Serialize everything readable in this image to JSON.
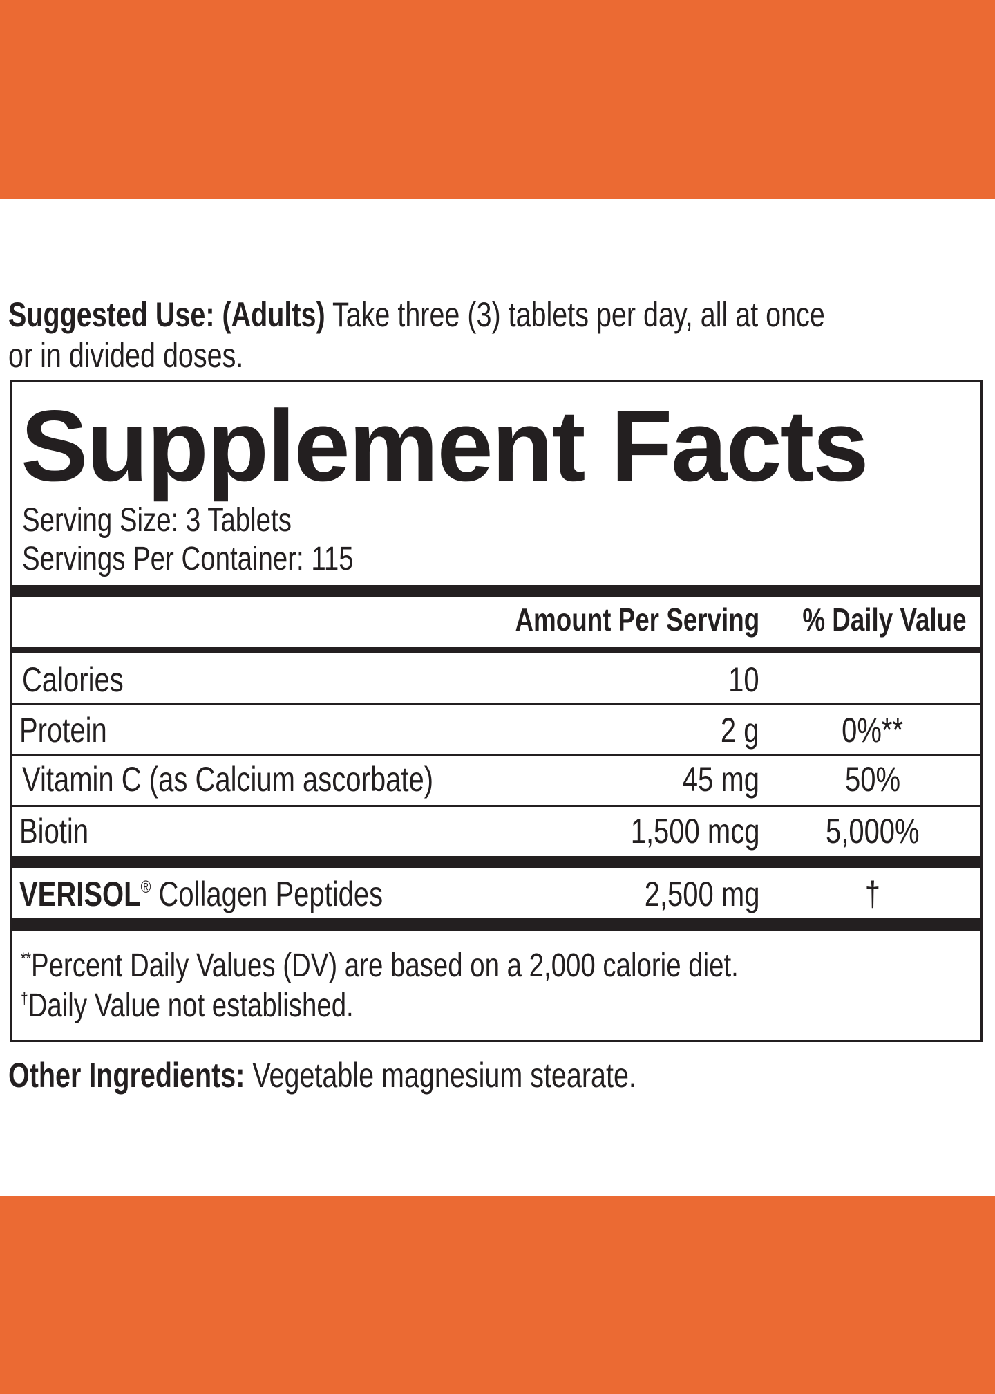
{
  "colors": {
    "band": "#eb6a33",
    "text": "#231f20"
  },
  "suggested_use": {
    "label": "Suggested Use: (Adults)",
    "line1": "Take three (3) tablets per day, all at once",
    "line2": "or in divided doses."
  },
  "facts": {
    "title": "Supplement Facts",
    "serving_size": "Serving Size: 3 Tablets",
    "servings_per_container": "Servings Per Container: 115",
    "header": {
      "amount": "Amount Per Serving",
      "dv": "% Daily Value"
    },
    "rows": [
      {
        "name": "Calories",
        "amount": "10",
        "dv": ""
      },
      {
        "name": "Protein",
        "amount": "2 g",
        "dv": "0%**"
      },
      {
        "name": "Vitamin C (as Calcium ascorbate)",
        "amount": "45 mg",
        "dv": "50%"
      },
      {
        "name": "Biotin",
        "amount": "1,500 mcg",
        "dv": "5,000%"
      }
    ],
    "collagen": {
      "brand": "VERISOL",
      "reg": "®",
      "name": "Collagen Peptides",
      "amount": "2,500 mg",
      "dv": "†"
    },
    "footnotes": [
      {
        "mark": "**",
        "text": "Percent Daily Values (DV) are based on a 2,000 calorie diet."
      },
      {
        "mark": "†",
        "text": "Daily Value not established."
      }
    ]
  },
  "other_ingredients": {
    "label": "Other Ingredients:",
    "text": "Vegetable magnesium stearate."
  }
}
